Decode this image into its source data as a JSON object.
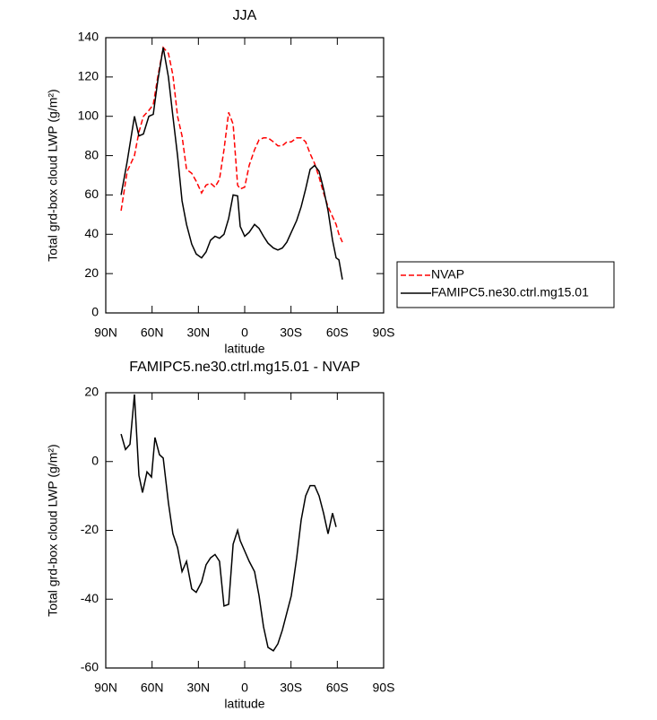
{
  "chart_data": [
    {
      "type": "line",
      "title": "JJA",
      "xlabel": "latitude",
      "ylabel": "Total grd-box cloud LWP (g/m²)",
      "x": [
        80.1,
        76.1,
        71.4,
        68.5,
        65.6,
        62.1,
        59.2,
        56.3,
        52.8,
        49.4,
        46.5,
        43.5,
        40.6,
        37.7,
        34.3,
        31.4,
        27.9,
        25.0,
        22.1,
        19.2,
        16.3,
        13.4,
        10.4,
        7.5,
        4.6,
        2.9,
        0,
        -2.9,
        -6.4,
        -9.3,
        -12.2,
        -15.1,
        -18.6,
        -21.5,
        -24.4,
        -27.3,
        -30.2,
        -33.7,
        -36.6,
        -39.5,
        -42.4,
        -45.3,
        -48.2,
        -51.1,
        -54,
        -56.9,
        -59.2,
        -61,
        -63.3
      ],
      "series": [
        {
          "name": "NVAP",
          "color": "#ff0000",
          "dash": "dashed",
          "values": [
            52,
            72,
            80,
            92,
            100,
            103,
            106,
            120,
            135,
            132,
            121,
            100,
            90,
            73,
            71,
            67,
            61,
            65,
            66,
            64,
            68,
            83,
            102,
            96,
            65,
            63,
            64,
            75,
            83,
            88,
            89,
            89,
            87,
            85,
            85,
            87,
            87,
            89,
            89,
            87,
            81,
            76,
            69,
            61,
            54,
            49,
            45,
            40,
            36
          ]
        },
        {
          "name": "FAMIPC5.ne30.ctrl.mg15.01",
          "color": "#000000",
          "dash": "solid",
          "values": [
            60,
            77,
            100,
            90,
            91,
            100,
            101,
            118,
            135,
            120,
            100,
            80,
            57,
            45,
            35,
            30,
            28,
            31,
            37,
            39,
            38,
            40,
            48,
            60,
            59.5,
            44,
            39,
            41,
            45,
            43,
            39,
            35.5,
            33,
            32,
            33,
            36,
            41,
            47,
            54,
            63,
            73,
            75,
            72,
            63,
            52,
            37,
            28,
            27,
            17
          ]
        }
      ],
      "xlim": [
        90,
        -90
      ],
      "xticks": [
        {
          "value": 90,
          "label": "90N"
        },
        {
          "value": 60,
          "label": "60N"
        },
        {
          "value": 30,
          "label": "30N"
        },
        0,
        {
          "value": -30,
          "label": "30S"
        },
        {
          "value": -60,
          "label": "60S"
        },
        {
          "value": -90,
          "label": "90S"
        }
      ],
      "ylim": [
        0,
        140
      ],
      "yticks": [
        0,
        20,
        40,
        60,
        80,
        100,
        120,
        140
      ],
      "legend": "right"
    },
    {
      "type": "line",
      "title": "FAMIPC5.ne30.ctrl.mg15.01 - NVAP",
      "xlabel": "latitude",
      "ylabel": "Total grd-box cloud LWP (g/m²)",
      "x": [
        80.1,
        77.2,
        74.3,
        71.4,
        68.5,
        66.2,
        63.3,
        60.4,
        58.1,
        55.2,
        52.8,
        49.4,
        46.5,
        43.5,
        40.6,
        37.7,
        34.3,
        31.4,
        27.9,
        25.0,
        22.1,
        19.2,
        16.3,
        13.4,
        10.4,
        7.5,
        4.6,
        2.9,
        0,
        -2.9,
        -6.4,
        -9.3,
        -12.2,
        -15.1,
        -18.6,
        -21.5,
        -24.4,
        -27.3,
        -30.2,
        -33.7,
        -36.6,
        -39.5,
        -42.4,
        -45.3,
        -48.2,
        -51.1,
        -54,
        -56.9,
        -59.2
      ],
      "series": [
        {
          "color": "#000000",
          "dash": "solid",
          "values": [
            8,
            3.5,
            5,
            19.5,
            -4,
            -9,
            -3,
            -4.5,
            7,
            2,
            1,
            -12,
            -21,
            -25,
            -32,
            -29,
            -37,
            -38,
            -35,
            -30,
            -28,
            -27,
            -29,
            -42,
            -41.5,
            -24,
            -20,
            -23,
            -26,
            -29,
            -32,
            -39,
            -48,
            -54,
            -55,
            -53,
            -49,
            -44,
            -39,
            -28,
            -17,
            -10,
            -7,
            -7,
            -10,
            -15,
            -21,
            -15,
            -19
          ]
        }
      ],
      "xlim": [
        90,
        -90
      ],
      "xticks": [
        {
          "value": 90,
          "label": "90N"
        },
        {
          "value": 60,
          "label": "60N"
        },
        {
          "value": 30,
          "label": "30N"
        },
        0,
        {
          "value": -30,
          "label": "30S"
        },
        {
          "value": -60,
          "label": "60S"
        },
        {
          "value": -90,
          "label": "90S"
        }
      ],
      "ylim": [
        -60,
        20
      ],
      "yticks": [
        -60,
        -40,
        -20,
        0,
        20
      ]
    }
  ]
}
